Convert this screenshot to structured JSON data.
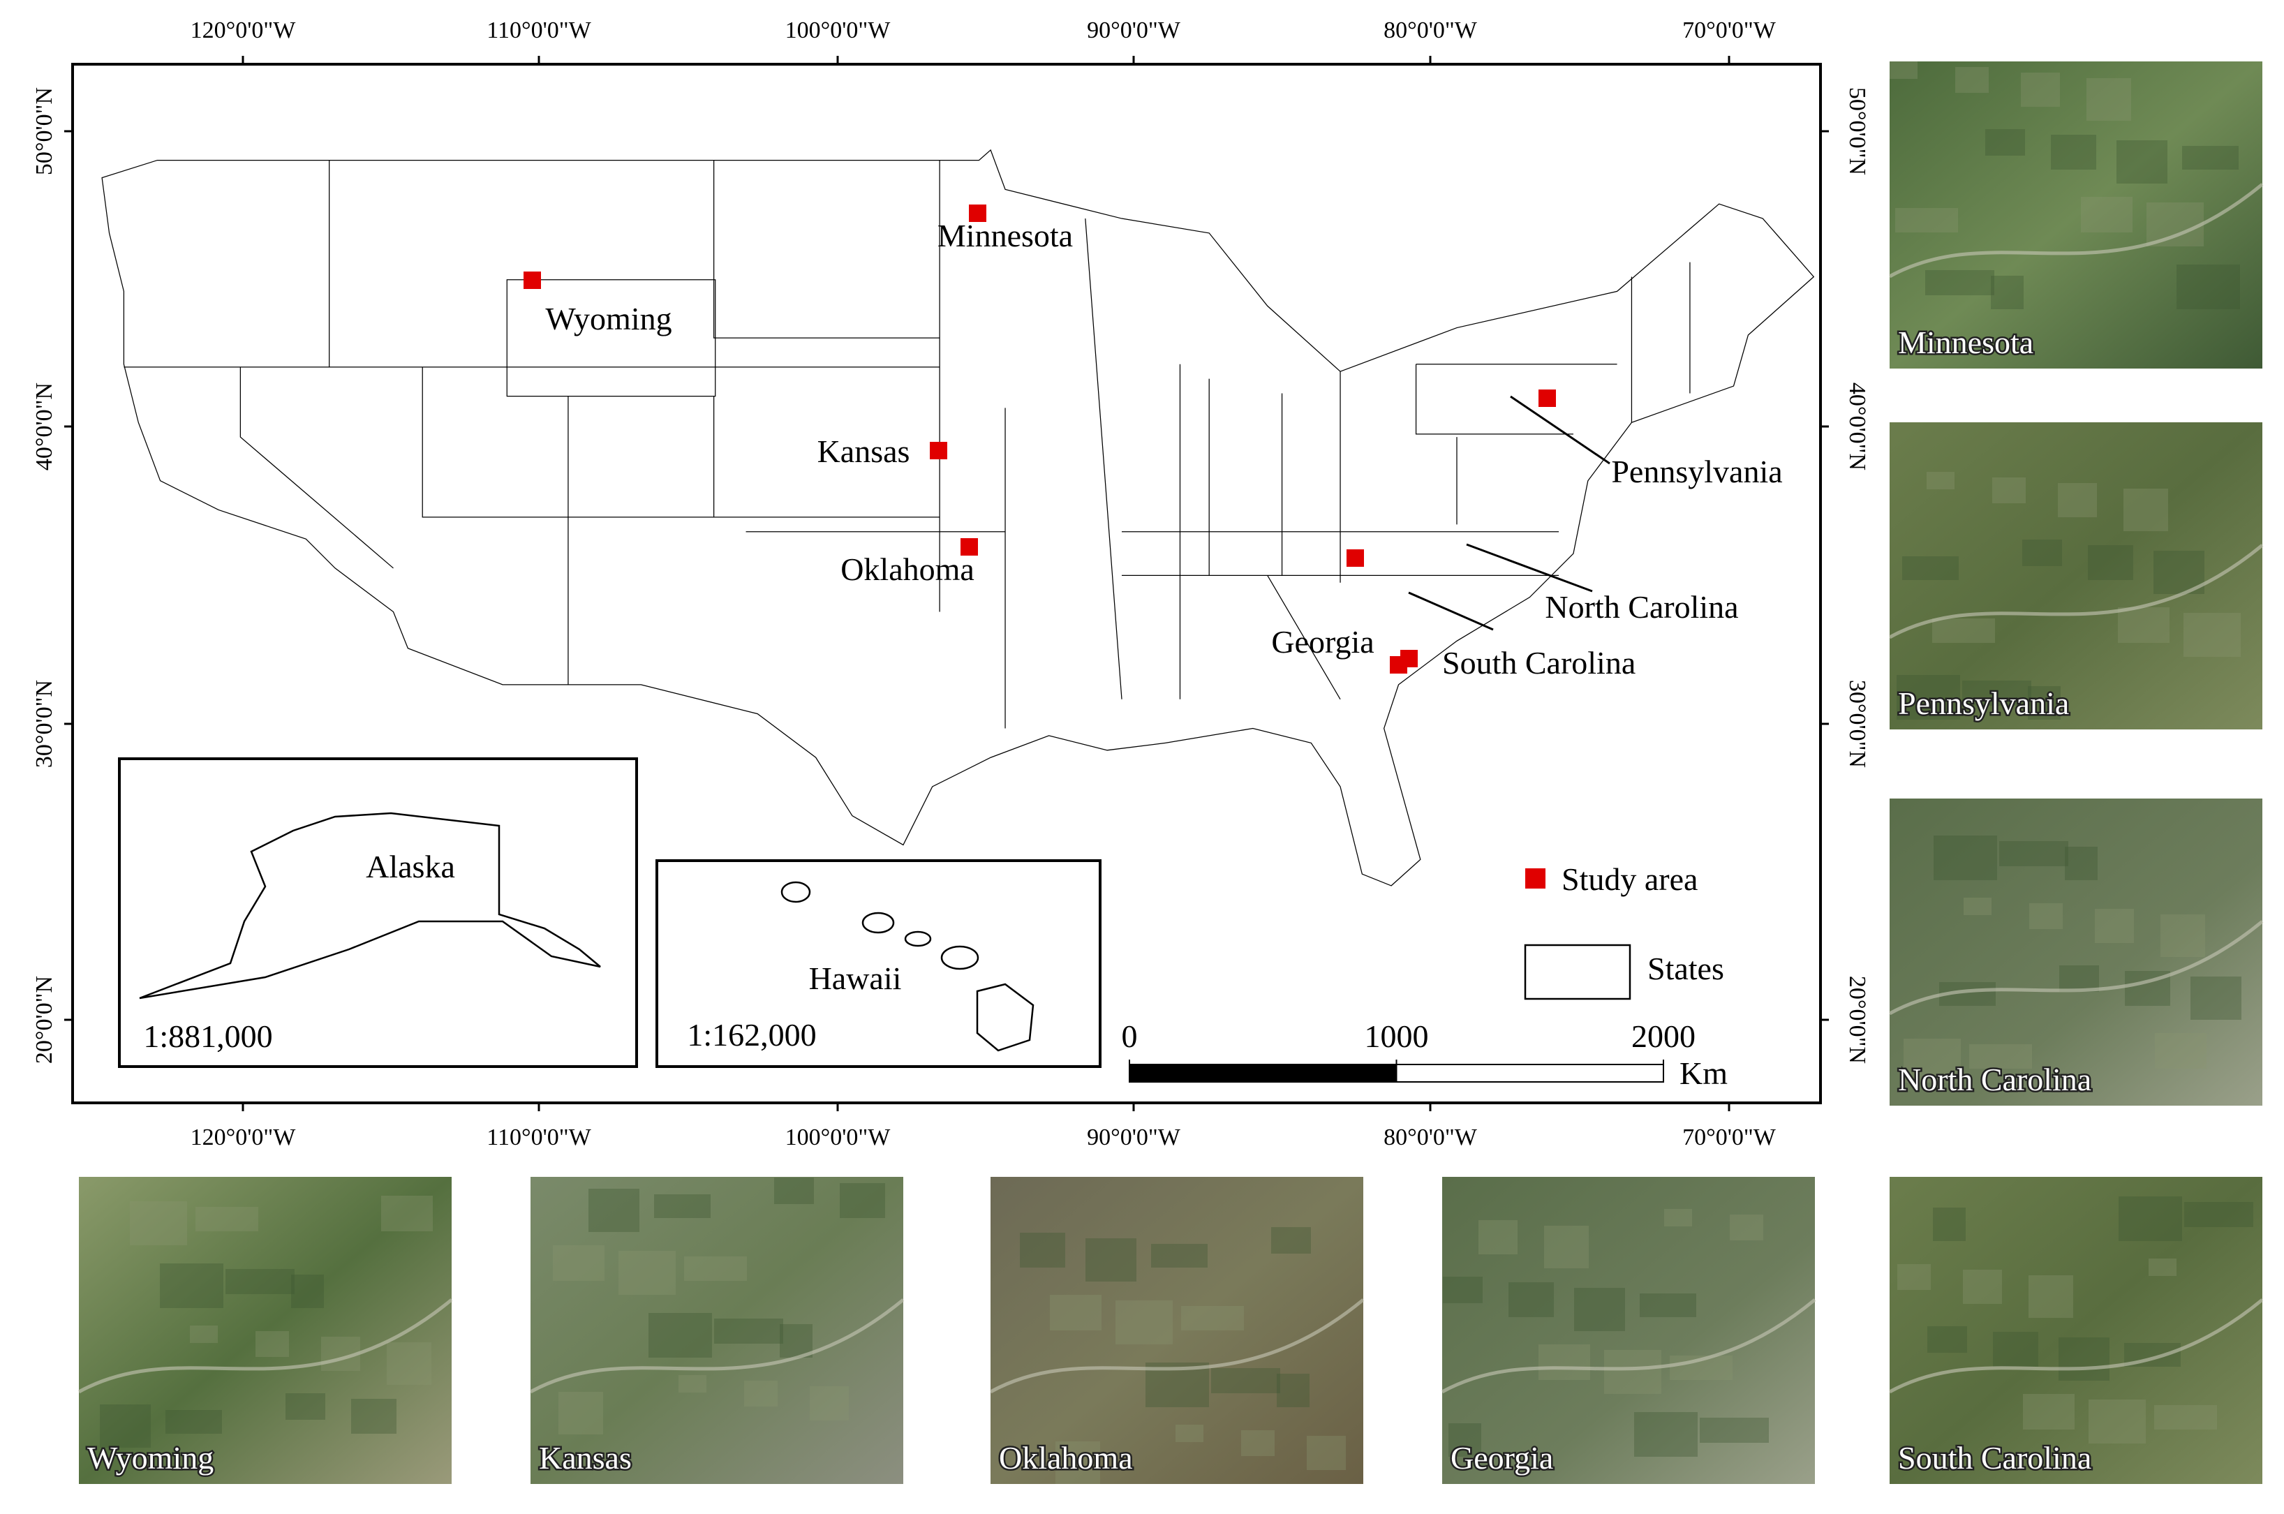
{
  "graticule": {
    "top": [
      "120°0'0\"W",
      "110°0'0\"W",
      "100°0'0\"W",
      "90°0'0\"W",
      "80°0'0\"W",
      "70°0'0\"W"
    ],
    "bottom": [
      "120°0'0\"W",
      "110°0'0\"W",
      "100°0'0\"W",
      "90°0'0\"W",
      "80°0'0\"W",
      "70°0'0\"W"
    ],
    "left": [
      "50°0'0\"N",
      "40°0'0\"N",
      "30°0'0\"N",
      "20°0'0\"N"
    ],
    "right": [
      "50°0'0\"N",
      "40°0'0\"N",
      "30°0'0\"N",
      "20°0'0\"N"
    ]
  },
  "states": [
    "Minnesota",
    "Wyoming",
    "Kansas",
    "Oklahoma",
    "Georgia",
    "South Carolina",
    "North Carolina",
    "Pennsylvania"
  ],
  "legend": {
    "study_area": "Study area",
    "states": "States"
  },
  "insets": {
    "alaska": {
      "label": "Alaska",
      "scale": "1:881,000"
    },
    "hawaii": {
      "label": "Hawaii",
      "scale": "1:162,000"
    }
  },
  "scale_bar": {
    "ticks": [
      0,
      1000,
      2000
    ],
    "unit": "Km"
  },
  "photos": [
    "Minnesota",
    "Pennsylvania",
    "North Carolina",
    "Wyoming",
    "Kansas",
    "Oklahoma",
    "Georgia",
    "South Carolina"
  ]
}
